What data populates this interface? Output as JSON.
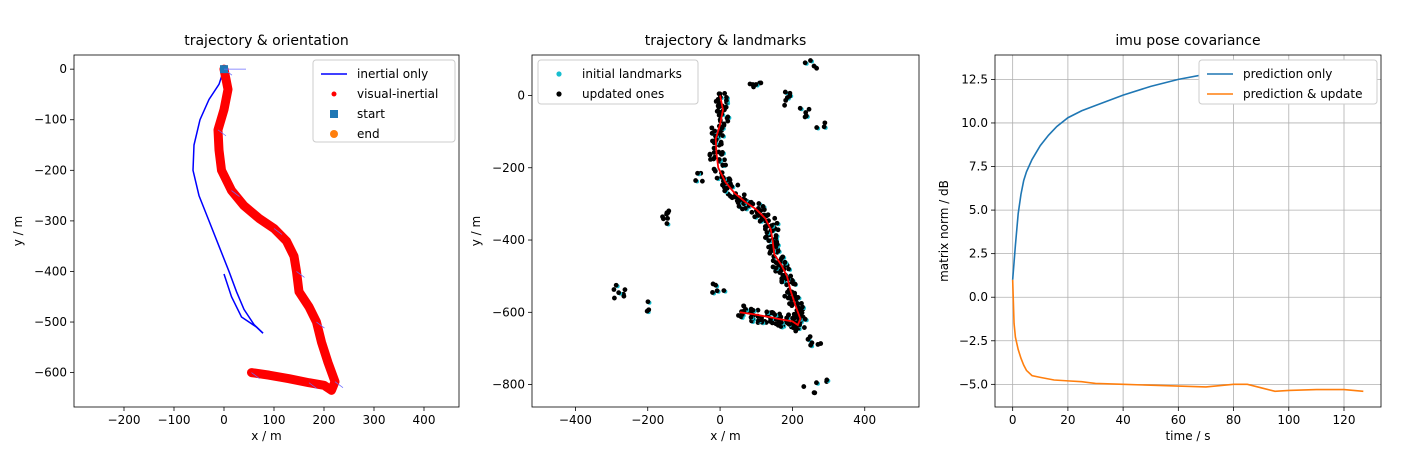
{
  "chart_data": [
    {
      "type": "line",
      "title": "trajectory & orientation",
      "xlabel": "x / m",
      "ylabel": "y / m",
      "xlim": [
        -300,
        470
      ],
      "ylim": [
        -668,
        28
      ],
      "xticks": [
        -200,
        -100,
        0,
        100,
        200,
        300,
        400
      ],
      "xtick_labels": [
        "−200",
        "−100",
        "0",
        "100",
        "200",
        "300",
        "400"
      ],
      "yticks": [
        0,
        -100,
        -200,
        -300,
        -400,
        -500,
        -600
      ],
      "ytick_labels": [
        "0",
        "−100",
        "−200",
        "−300",
        "−400",
        "−500",
        "−600"
      ],
      "grid": false,
      "legend_position": "top-right",
      "series": [
        {
          "name": "inertial only",
          "color": "#0000ff",
          "points": [
            [
              0,
              0
            ],
            [
              -10,
              -30
            ],
            [
              -30,
              -60
            ],
            [
              -48,
              -100
            ],
            [
              -60,
              -150
            ],
            [
              -62,
              -200
            ],
            [
              -50,
              -250
            ],
            [
              -30,
              -300
            ],
            [
              -10,
              -350
            ],
            [
              10,
              -400
            ],
            [
              25,
              -440
            ],
            [
              40,
              -475
            ],
            [
              60,
              -505
            ],
            [
              78,
              -522
            ]
          ],
          "points_tail": [
            [
              0,
              -405
            ],
            [
              15,
              -450
            ],
            [
              35,
              -490
            ],
            [
              65,
              -510
            ],
            [
              78,
              -522
            ]
          ]
        },
        {
          "name": "visual-inertial",
          "color": "#ff0000",
          "points": [
            [
              0,
              0
            ],
            [
              8,
              -40
            ],
            [
              0,
              -80
            ],
            [
              -12,
              -120
            ],
            [
              -10,
              -160
            ],
            [
              -5,
              -200
            ],
            [
              15,
              -240
            ],
            [
              40,
              -270
            ],
            [
              70,
              -295
            ],
            [
              100,
              -315
            ],
            [
              125,
              -340
            ],
            [
              140,
              -370
            ],
            [
              145,
              -400
            ],
            [
              150,
              -440
            ],
            [
              170,
              -470
            ],
            [
              185,
              -500
            ],
            [
              195,
              -540
            ],
            [
              208,
              -580
            ],
            [
              222,
              -618
            ],
            [
              215,
              -635
            ],
            [
              200,
              -625
            ],
            [
              170,
              -620
            ],
            [
              130,
              -612
            ],
            [
              90,
              -605
            ],
            [
              55,
              -600
            ]
          ]
        },
        {
          "name": "start",
          "color": "#1f77b4",
          "points": [
            [
              0,
              0
            ]
          ]
        },
        {
          "name": "end",
          "color": "#ff7f0e",
          "points": []
        }
      ]
    },
    {
      "type": "scatter",
      "title": "trajectory & landmarks",
      "xlabel": "x / m",
      "ylabel": "y / m",
      "xlim": [
        -520,
        550
      ],
      "ylim": [
        -862,
        112
      ],
      "xticks": [
        -400,
        -200,
        0,
        200,
        400
      ],
      "xtick_labels": [
        "−400",
        "−200",
        "0",
        "200",
        "400"
      ],
      "yticks": [
        0,
        -200,
        -400,
        -600,
        -800
      ],
      "ytick_labels": [
        "0",
        "−200",
        "−400",
        "−600",
        "−800"
      ],
      "grid": false,
      "legend_position": "top-left",
      "series": [
        {
          "name": "initial landmarks",
          "color": "#17becf"
        },
        {
          "name": "updated ones",
          "color": "#000000"
        }
      ],
      "trajectory": [
        [
          0,
          0
        ],
        [
          8,
          -40
        ],
        [
          0,
          -80
        ],
        [
          -12,
          -120
        ],
        [
          -10,
          -160
        ],
        [
          -5,
          -200
        ],
        [
          15,
          -240
        ],
        [
          40,
          -270
        ],
        [
          70,
          -295
        ],
        [
          100,
          -315
        ],
        [
          125,
          -340
        ],
        [
          140,
          -370
        ],
        [
          145,
          -400
        ],
        [
          150,
          -440
        ],
        [
          170,
          -470
        ],
        [
          185,
          -500
        ],
        [
          195,
          -540
        ],
        [
          208,
          -580
        ],
        [
          222,
          -618
        ],
        [
          215,
          -635
        ],
        [
          200,
          -625
        ],
        [
          170,
          -620
        ],
        [
          130,
          -612
        ],
        [
          90,
          -605
        ],
        [
          55,
          -600
        ]
      ],
      "outlier_clusters": [
        [
          -215,
          -580
        ],
        [
          -275,
          -545
        ],
        [
          -155,
          -335
        ],
        [
          -65,
          -225
        ],
        [
          100,
          40
        ],
        [
          180,
          -10
        ],
        [
          230,
          -50
        ],
        [
          280,
          -80
        ],
        [
          255,
          80
        ],
        [
          260,
          -680
        ],
        [
          280,
          -780
        ],
        [
          245,
          -815
        ],
        [
          -5,
          -535
        ]
      ]
    },
    {
      "type": "line",
      "title": "imu pose covariance",
      "xlabel": "time / s",
      "ylabel": "matrix norm / dB",
      "xlim": [
        -6.4,
        133.4
      ],
      "ylim": [
        -6.3,
        13.9
      ],
      "xticks": [
        0,
        20,
        40,
        60,
        80,
        100,
        120
      ],
      "xtick_labels": [
        "0",
        "20",
        "40",
        "60",
        "80",
        "100",
        "120"
      ],
      "yticks": [
        12.5,
        10.0,
        7.5,
        5.0,
        2.5,
        0.0,
        -2.5,
        -5.0
      ],
      "ytick_labels": [
        "12.5",
        "10.0",
        "7.5",
        "5.0",
        "2.5",
        "0.0",
        "−2.5",
        "−5.0"
      ],
      "grid": true,
      "legend_position": "top-right",
      "series": [
        {
          "name": "prediction only",
          "color": "#1f77b4",
          "x": [
            0,
            1,
            2,
            3,
            4,
            5,
            7,
            10,
            13,
            16,
            20,
            25,
            30,
            40,
            50,
            60,
            70,
            80,
            90,
            100,
            110,
            120,
            127
          ],
          "y": [
            1.0,
            3.0,
            4.8,
            5.9,
            6.7,
            7.2,
            7.9,
            8.7,
            9.3,
            9.8,
            10.3,
            10.7,
            11.0,
            11.6,
            12.1,
            12.5,
            12.8,
            12.9,
            12.85,
            12.75,
            12.65,
            12.6,
            12.6
          ]
        },
        {
          "name": "prediction & update",
          "color": "#ff7f0e",
          "x": [
            0,
            0.5,
            1,
            2,
            3,
            4,
            5,
            7,
            10,
            15,
            20,
            25,
            30,
            40,
            50,
            60,
            70,
            80,
            85,
            90,
            95,
            100,
            110,
            120,
            127
          ],
          "y": [
            1.0,
            -1.5,
            -2.3,
            -3.0,
            -3.5,
            -3.9,
            -4.2,
            -4.5,
            -4.6,
            -4.75,
            -4.8,
            -4.85,
            -4.95,
            -5.0,
            -5.05,
            -5.1,
            -5.15,
            -5.0,
            -5.0,
            -5.2,
            -5.4,
            -5.35,
            -5.3,
            -5.3,
            -5.4
          ]
        }
      ]
    }
  ]
}
